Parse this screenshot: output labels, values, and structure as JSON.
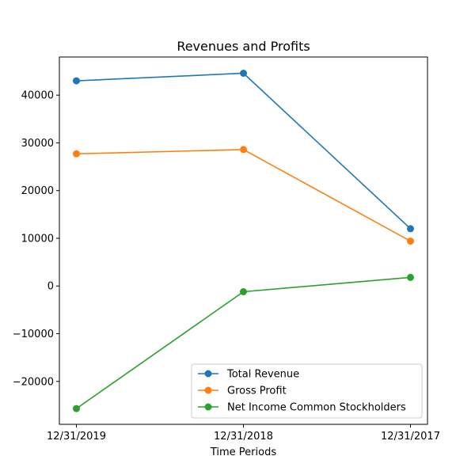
{
  "chart_data": {
    "type": "line",
    "title": "Revenues and Profits",
    "xlabel": "Time Periods",
    "ylabel": "",
    "categories": [
      "12/31/2019",
      "12/31/2018",
      "12/31/2017"
    ],
    "ylim": [
      -29000,
      48000
    ],
    "yticks": [
      -20000,
      -10000,
      0,
      10000,
      20000,
      30000,
      40000
    ],
    "ytick_labels": [
      "−20000",
      "−10000",
      "0",
      "10000",
      "20000",
      "30000",
      "40000"
    ],
    "grid": false,
    "legend_position": "lower-right",
    "series": [
      {
        "name": "Total Revenue",
        "color": "#1f77b4",
        "values": [
          43000,
          44600,
          12000
        ]
      },
      {
        "name": "Gross Profit",
        "color": "#ff7f0e",
        "values": [
          27700,
          28600,
          9400
        ]
      },
      {
        "name": "Net Income Common Stockholders",
        "color": "#2ca02c",
        "values": [
          -25700,
          -1200,
          1800
        ]
      }
    ]
  }
}
